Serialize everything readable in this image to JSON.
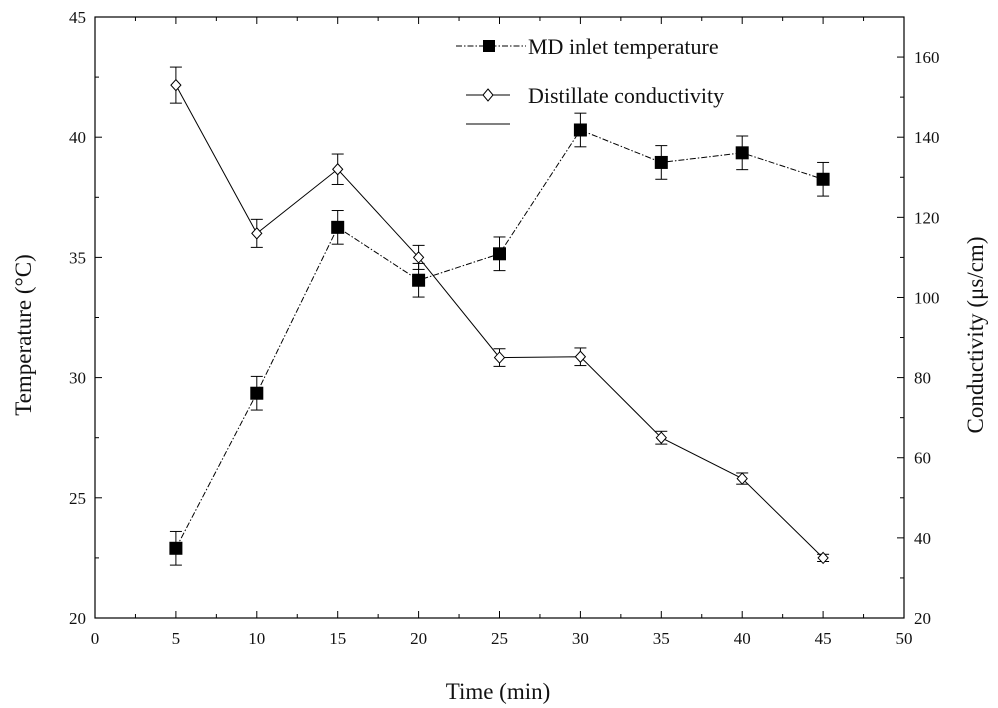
{
  "chart_data": {
    "type": "line",
    "xlabel": "Time (min)",
    "ylabel_left": "Temperature (°C)",
    "ylabel_right": "Conductivity  (μs/cm)",
    "x_range": [
      0,
      50
    ],
    "x_ticks": [
      0,
      5,
      10,
      15,
      20,
      25,
      30,
      35,
      40,
      45,
      50
    ],
    "y_left_range": [
      20,
      45
    ],
    "y_left_ticks": [
      20,
      25,
      30,
      35,
      40,
      45
    ],
    "y_right_range": [
      20,
      170
    ],
    "y_right_ticks": [
      20,
      40,
      60,
      80,
      100,
      120,
      140,
      160
    ],
    "grid": false,
    "legend_position": "top-right",
    "series": [
      {
        "name": "MD inlet temperature",
        "axis": "left",
        "marker": "filled-square",
        "line_style": "dash-dot",
        "color": "#000000",
        "x": [
          5,
          10,
          15,
          20,
          25,
          30,
          35,
          40,
          45
        ],
        "y": [
          22.9,
          29.35,
          36.25,
          34.05,
          35.15,
          40.3,
          38.95,
          39.35,
          38.25
        ],
        "error": [
          0.7,
          0.7,
          0.7,
          0.7,
          0.7,
          0.7,
          0.7,
          0.7,
          0.7
        ]
      },
      {
        "name": "Distillate conductivity",
        "axis": "right",
        "marker": "open-diamond",
        "line_style": "solid",
        "color": "#000000",
        "x": [
          5,
          10,
          15,
          20,
          25,
          30,
          35,
          40,
          45
        ],
        "y": [
          153,
          116,
          132,
          110,
          85,
          85.2,
          65,
          54.8,
          35
        ],
        "error": [
          4.5,
          3.5,
          3.8,
          3.0,
          2.2,
          2.2,
          1.6,
          1.4,
          0.9
        ]
      }
    ]
  }
}
